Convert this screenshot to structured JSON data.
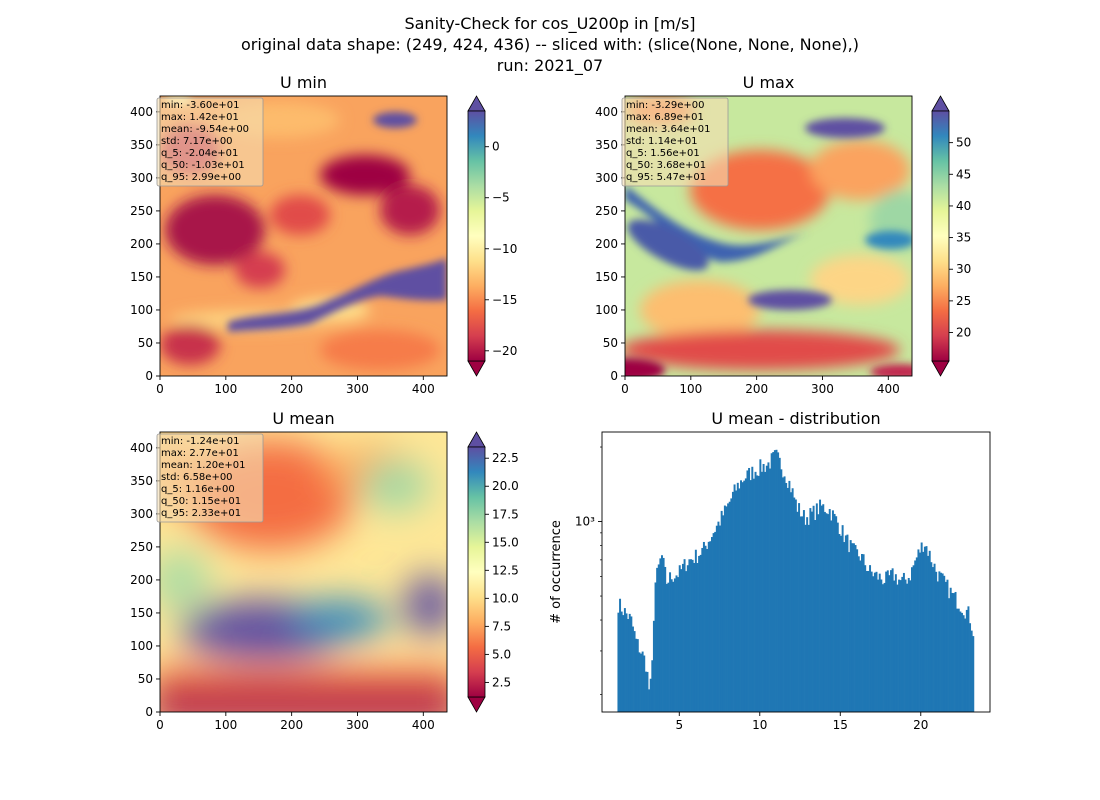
{
  "figure": {
    "suptitle_lines": [
      "Sanity-Check for cos_U200p in [m/s]",
      "original data shape: (249, 424, 436) -- sliced with: (slice(None, None, None),)",
      "run: 2021_07"
    ]
  },
  "chart_data": [
    {
      "type": "heatmap",
      "title": "U min",
      "colormap": "Spectral",
      "extend": "both",
      "xlim": [
        0,
        436
      ],
      "ylim": [
        0,
        424
      ],
      "x_ticks": [
        0,
        100,
        200,
        300,
        400
      ],
      "y_ticks": [
        0,
        50,
        100,
        150,
        200,
        250,
        300,
        350,
        400
      ],
      "colorbar": {
        "vmin": -21,
        "vmax": 3.5,
        "ticks": [
          0,
          -5,
          -10,
          -15,
          -20
        ],
        "tick_labels": [
          "0",
          "−5",
          "−10",
          "−15",
          "−20"
        ]
      },
      "stats_lines": [
        "min: -3.60e+01",
        "max: 1.42e+01",
        "mean: -9.54e+00",
        "std: 7.17e+00",
        "q_5: -2.04e+01",
        "q_50: -1.03e+01",
        "q_95: 2.99e+00"
      ]
    },
    {
      "type": "heatmap",
      "title": "U max",
      "colormap": "Spectral",
      "extend": "both",
      "xlim": [
        0,
        436
      ],
      "ylim": [
        0,
        424
      ],
      "x_ticks": [
        0,
        100,
        200,
        300,
        400
      ],
      "y_ticks": [
        0,
        50,
        100,
        150,
        200,
        250,
        300,
        350,
        400
      ],
      "colorbar": {
        "vmin": 15.5,
        "vmax": 55,
        "ticks": [
          20,
          25,
          30,
          35,
          40,
          45,
          50
        ],
        "tick_labels": [
          "20",
          "25",
          "30",
          "35",
          "40",
          "45",
          "50"
        ]
      },
      "stats_lines": [
        "min: -3.29e+00",
        "max: 6.89e+01",
        "mean: 3.64e+01",
        "std: 1.14e+01",
        "q_5: 1.56e+01",
        "q_50: 3.68e+01",
        "q_95: 5.47e+01"
      ]
    },
    {
      "type": "heatmap",
      "title": "U mean",
      "colormap": "Spectral",
      "extend": "both",
      "xlim": [
        0,
        436
      ],
      "ylim": [
        0,
        424
      ],
      "x_ticks": [
        0,
        100,
        200,
        300,
        400
      ],
      "y_ticks": [
        0,
        50,
        100,
        150,
        200,
        250,
        300,
        350,
        400
      ],
      "colorbar": {
        "vmin": 1.2,
        "vmax": 23.5,
        "ticks": [
          2.5,
          5,
          7.5,
          10,
          12.5,
          15,
          17.5,
          20,
          22.5
        ],
        "tick_labels": [
          "2.5",
          "5.0",
          "7.5",
          "10.0",
          "12.5",
          "15.0",
          "17.5",
          "20.0",
          "22.5"
        ]
      },
      "stats_lines": [
        "min: -1.24e+01",
        "max: 2.77e+01",
        "mean: 1.20e+01",
        "std: 6.58e+00",
        "q_5: 1.16e+00",
        "q_50: 1.15e+01",
        "q_95: 2.33e+01"
      ]
    },
    {
      "type": "bar",
      "title": "U mean - distribution",
      "ylabel": "# of occurrence",
      "xlabel": "",
      "yscale": "log",
      "xlim": [
        0.2,
        24.3
      ],
      "ylim": [
        170,
        2300
      ],
      "x_ticks": [
        5,
        10,
        15,
        20
      ],
      "y_ticks": [
        1000
      ],
      "y_tick_labels": [
        "10³"
      ],
      "color": "#1f77b4",
      "bin_range": [
        1.16,
        23.3
      ],
      "bin_count": 221,
      "profile": [
        [
          1.16,
          470
        ],
        [
          1.5,
          440
        ],
        [
          2.0,
          400
        ],
        [
          2.3,
          330
        ],
        [
          2.6,
          300
        ],
        [
          2.9,
          270
        ],
        [
          3.05,
          230
        ],
        [
          3.15,
          200
        ],
        [
          3.3,
          240
        ],
        [
          3.5,
          560
        ],
        [
          3.9,
          730
        ],
        [
          4.2,
          570
        ],
        [
          4.5,
          600
        ],
        [
          5.0,
          620
        ],
        [
          5.5,
          690
        ],
        [
          6.0,
          720
        ],
        [
          6.5,
          770
        ],
        [
          7.0,
          880
        ],
        [
          7.5,
          1000
        ],
        [
          8.0,
          1150
        ],
        [
          8.5,
          1350
        ],
        [
          9.0,
          1500
        ],
        [
          9.5,
          1580
        ],
        [
          10.0,
          1650
        ],
        [
          10.5,
          1700
        ],
        [
          11.0,
          1850
        ],
        [
          11.3,
          1700
        ],
        [
          11.8,
          1450
        ],
        [
          12.3,
          1150
        ],
        [
          12.8,
          1030
        ],
        [
          13.3,
          1080
        ],
        [
          13.8,
          1150
        ],
        [
          14.3,
          1120
        ],
        [
          14.8,
          1000
        ],
        [
          15.3,
          860
        ],
        [
          15.8,
          760
        ],
        [
          16.3,
          720
        ],
        [
          16.8,
          630
        ],
        [
          17.3,
          600
        ],
        [
          17.8,
          580
        ],
        [
          18.3,
          610
        ],
        [
          18.8,
          570
        ],
        [
          19.3,
          600
        ],
        [
          19.8,
          730
        ],
        [
          20.2,
          830
        ],
        [
          20.6,
          720
        ],
        [
          21.0,
          620
        ],
        [
          21.5,
          560
        ],
        [
          22.0,
          500
        ],
        [
          22.5,
          460
        ],
        [
          23.0,
          420
        ],
        [
          23.3,
          350
        ]
      ]
    }
  ]
}
